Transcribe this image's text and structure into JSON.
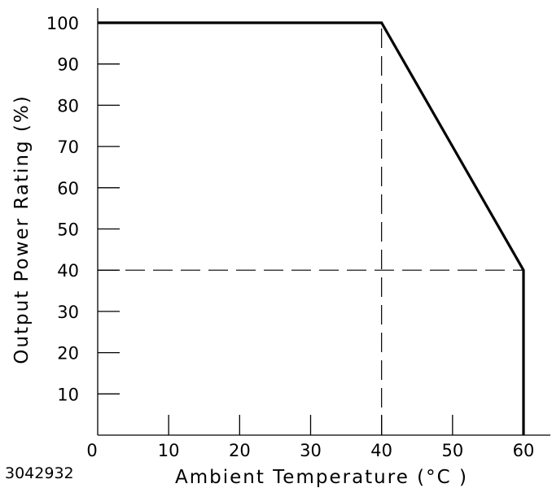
{
  "chart_data": {
    "type": "line",
    "title": "",
    "xlabel": "Ambient Temperature (°C )",
    "ylabel": "Output Power Rating (%)",
    "xlim": [
      0,
      60
    ],
    "ylim": [
      0,
      100
    ],
    "x_ticks": [
      0,
      10,
      20,
      30,
      40,
      50,
      60
    ],
    "y_ticks": [
      10,
      20,
      30,
      40,
      50,
      60,
      70,
      80,
      90,
      100
    ],
    "grid": false,
    "series": [
      {
        "x": [
          0,
          40,
          60,
          60
        ],
        "y": [
          100,
          100,
          40,
          0
        ]
      }
    ],
    "reference_lines": [
      {
        "x": [
          40,
          40
        ],
        "y": [
          0,
          100
        ]
      },
      {
        "x": [
          0,
          60
        ],
        "y": [
          40,
          40
        ]
      }
    ],
    "code": "3042932"
  }
}
